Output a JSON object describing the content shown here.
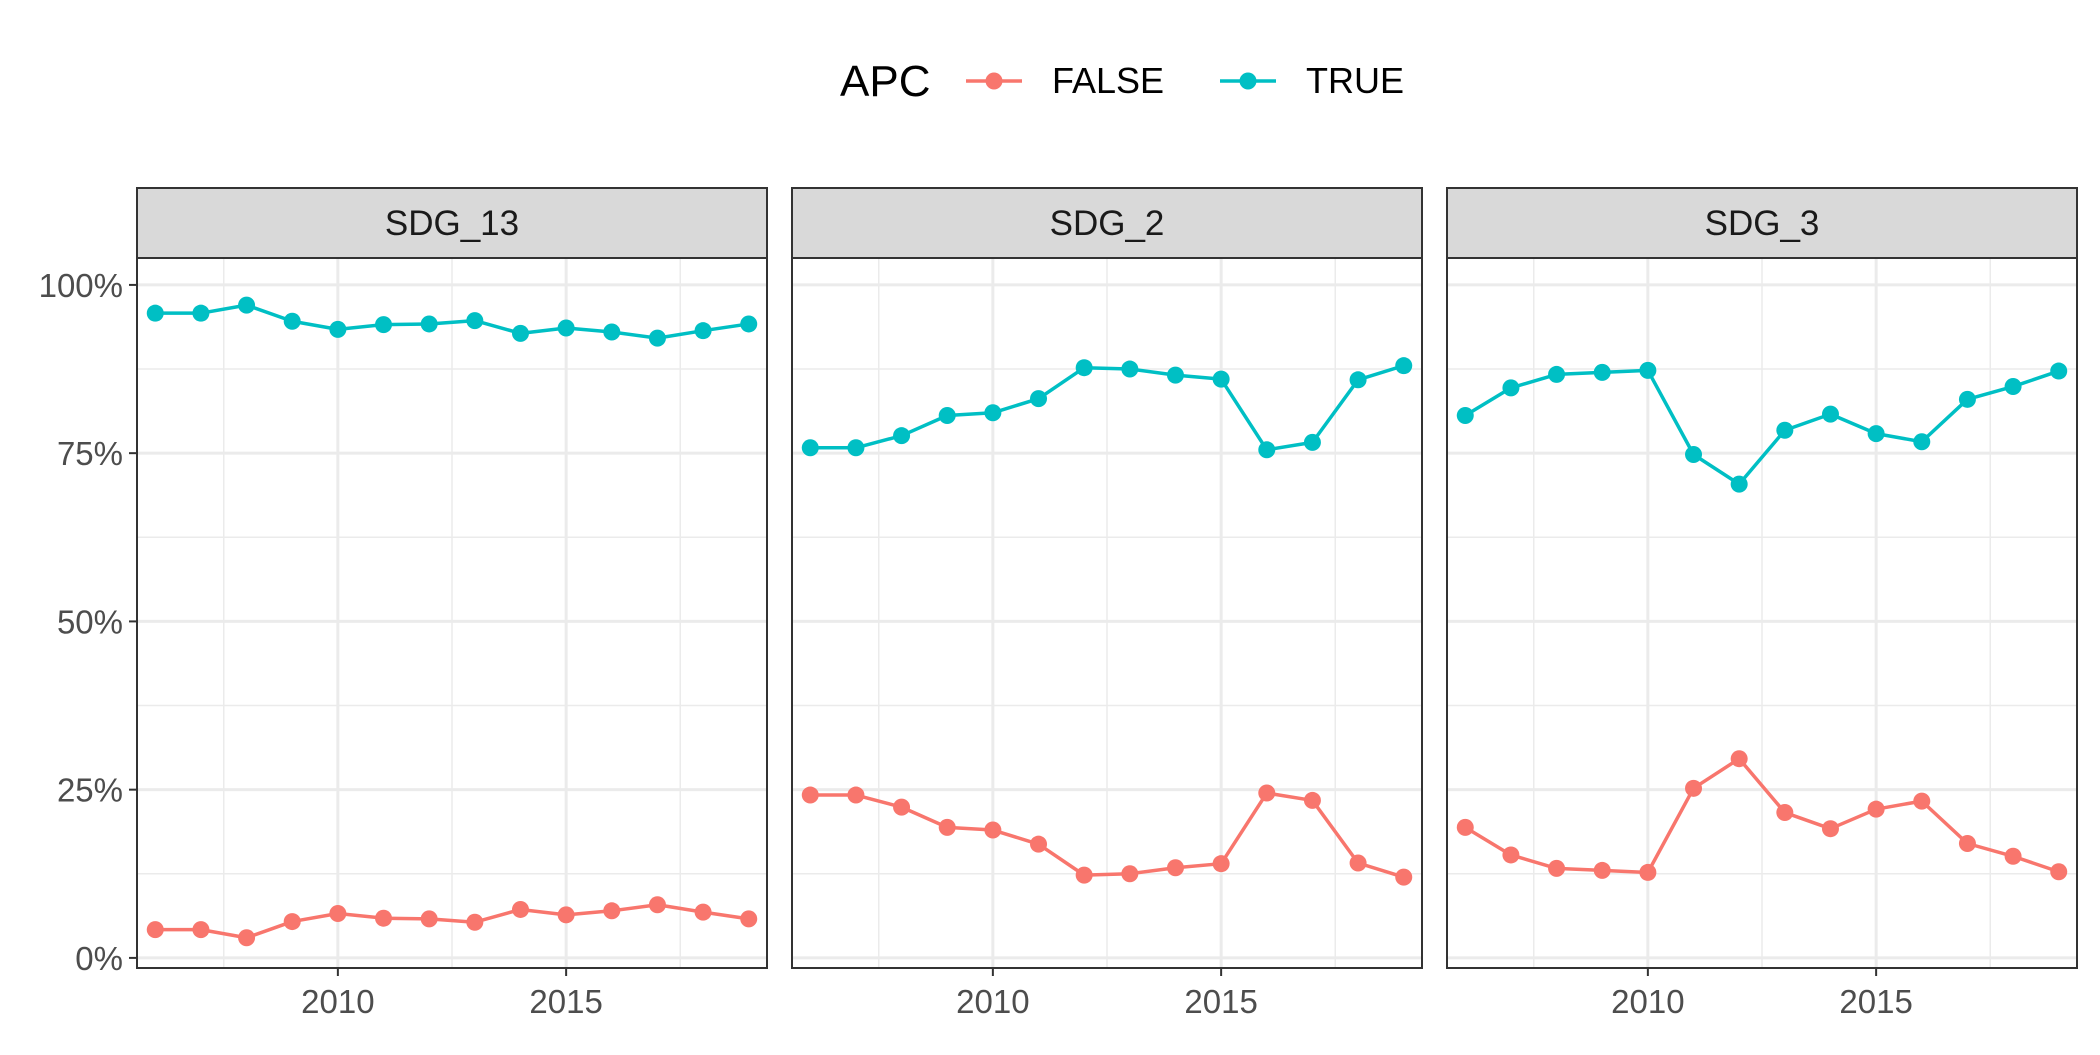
{
  "legend": {
    "title": "APC",
    "position": "top",
    "entries": [
      {
        "label": "FALSE",
        "color": "#F8766D"
      },
      {
        "label": "TRUE",
        "color": "#00BFC4"
      }
    ]
  },
  "chart_data": {
    "type": "line",
    "facets": [
      "SDG_13",
      "SDG_2",
      "SDG_3"
    ],
    "x": [
      2006,
      2007,
      2008,
      2009,
      2010,
      2011,
      2012,
      2013,
      2014,
      2015,
      2016,
      2017,
      2018,
      2019
    ],
    "xlim": [
      2005.6,
      2019.4
    ],
    "ylim": [
      -1.5,
      104
    ],
    "x_ticks": [
      2010,
      2015
    ],
    "x_minor_ticks": [
      2007.5,
      2012.5,
      2017.5
    ],
    "y_ticks": [
      0,
      25,
      50,
      75,
      100
    ],
    "y_tick_labels": [
      "0%",
      "25%",
      "50%",
      "75%",
      "100%"
    ],
    "y_minor_ticks": [
      12.5,
      37.5,
      62.5,
      87.5
    ],
    "grid": true,
    "legend_position": "top",
    "panels": [
      {
        "facet": "SDG_13",
        "series": [
          {
            "name": "FALSE",
            "color": "#F8766D",
            "values": [
              4.2,
              4.2,
              3.0,
              5.4,
              6.6,
              5.9,
              5.8,
              5.3,
              7.2,
              6.4,
              7.0,
              7.9,
              6.8,
              5.8
            ]
          },
          {
            "name": "TRUE",
            "color": "#00BFC4",
            "values": [
              95.8,
              95.8,
              97.0,
              94.6,
              93.4,
              94.1,
              94.2,
              94.7,
              92.8,
              93.6,
              93.0,
              92.1,
              93.2,
              94.2
            ]
          }
        ]
      },
      {
        "facet": "SDG_2",
        "series": [
          {
            "name": "FALSE",
            "color": "#F8766D",
            "values": [
              24.2,
              24.2,
              22.4,
              19.4,
              19.0,
              16.9,
              12.3,
              12.5,
              13.4,
              14.0,
              24.5,
              23.4,
              14.1,
              12.0
            ]
          },
          {
            "name": "TRUE",
            "color": "#00BFC4",
            "values": [
              75.8,
              75.8,
              77.6,
              80.6,
              81.0,
              83.1,
              87.7,
              87.5,
              86.6,
              86.0,
              75.5,
              76.6,
              85.9,
              88.0
            ]
          }
        ]
      },
      {
        "facet": "SDG_3",
        "series": [
          {
            "name": "FALSE",
            "color": "#F8766D",
            "values": [
              19.4,
              15.3,
              13.3,
              13.0,
              12.7,
              25.2,
              29.6,
              21.6,
              19.2,
              22.1,
              23.3,
              17.0,
              15.1,
              12.8
            ]
          },
          {
            "name": "TRUE",
            "color": "#00BFC4",
            "values": [
              80.6,
              84.7,
              86.7,
              87.0,
              87.3,
              74.8,
              70.4,
              78.4,
              80.8,
              77.9,
              76.7,
              83.0,
              84.9,
              87.2
            ]
          }
        ]
      }
    ]
  }
}
